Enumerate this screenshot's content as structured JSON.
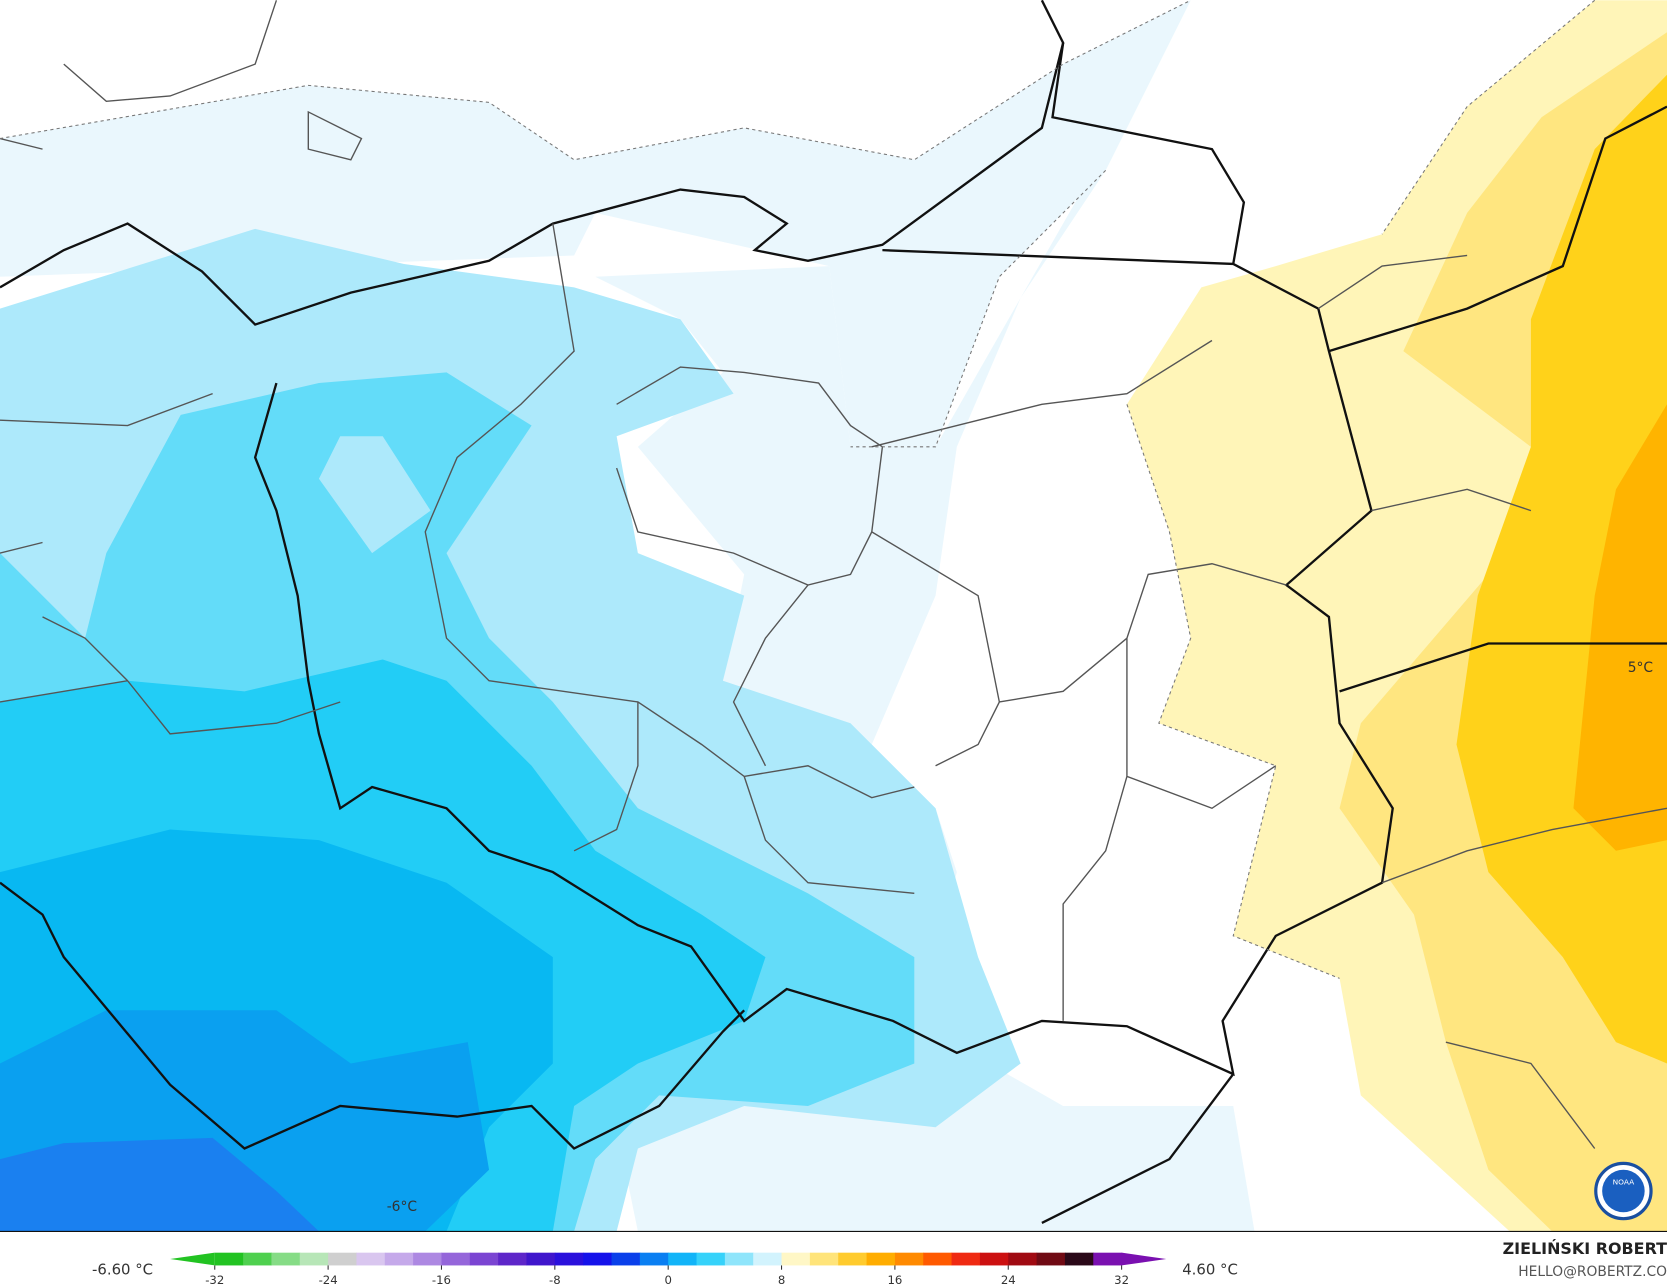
{
  "map": {
    "contour_labels": [
      "-6°C",
      "5°C"
    ]
  },
  "colorbar": {
    "lim": [
      -32,
      32
    ],
    "ticks": [
      -32,
      -24,
      -16,
      -8,
      0,
      8,
      16,
      24,
      32
    ],
    "colors": [
      "#22c322",
      "#4fd04f",
      "#86dc86",
      "#b7e6b7",
      "#cfcfcf",
      "#d9c6ef",
      "#c5a9ea",
      "#ad88e2",
      "#9566da",
      "#7b45d2",
      "#5e26c9",
      "#4016cc",
      "#2a10dc",
      "#1512ea",
      "#0a40ea",
      "#0a7ff2",
      "#12b4f8",
      "#36d2fa",
      "#8fe5fb",
      "#d2f3fd",
      "#fff7c6",
      "#ffe47a",
      "#ffcb2e",
      "#ffad00",
      "#ff8a00",
      "#ff5a00",
      "#ef2a12",
      "#cc1010",
      "#a00a12",
      "#700a14",
      "#2a0818",
      "#7a10b0"
    ],
    "min_label": "-6.60 °C",
    "max_label": "4.60 °C"
  },
  "credits": {
    "author": "ZIELIŃSKI ROBERT",
    "contact": "HELLO@ROBERTZ.CO"
  }
}
